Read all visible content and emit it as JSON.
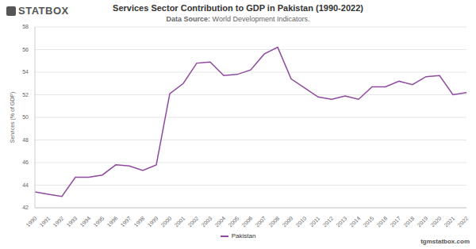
{
  "chart_data": {
    "type": "line",
    "title": "Services Sector Contribution to GDP in Pakistan (1990-2022)",
    "subtitle": "Data Source: World Development Indicators.",
    "brand": "STATBOX",
    "footer": "tgmstatbox.com",
    "y_label": "Services (% of GDP)",
    "categories": [
      "1990",
      "1991",
      "1992",
      "1993",
      "1994",
      "1995",
      "1996",
      "1997",
      "1998",
      "1999",
      "2000",
      "2001",
      "2002",
      "2003",
      "2004",
      "2005",
      "2006",
      "2007",
      "2008",
      "2009",
      "2010",
      "2011",
      "2012",
      "2013",
      "2014",
      "2015",
      "2016",
      "2017",
      "2018",
      "2019",
      "2020",
      "2021",
      "2022"
    ],
    "series": [
      {
        "name": "Pakistan",
        "color": "#8e4a9e",
        "values": [
          43.4,
          43.2,
          43.0,
          44.7,
          44.7,
          44.9,
          45.8,
          45.7,
          45.3,
          45.8,
          52.1,
          53.0,
          54.8,
          54.9,
          53.7,
          53.8,
          54.2,
          55.6,
          56.2,
          53.4,
          52.6,
          51.8,
          51.6,
          51.9,
          51.6,
          52.7,
          52.7,
          53.2,
          52.9,
          53.6,
          53.7,
          52.0,
          52.2
        ]
      }
    ],
    "ylim": [
      42,
      58
    ],
    "yticks": [
      42,
      44,
      46,
      48,
      50,
      52,
      54,
      56,
      58
    ],
    "grid": true,
    "legend": "bottom"
  }
}
